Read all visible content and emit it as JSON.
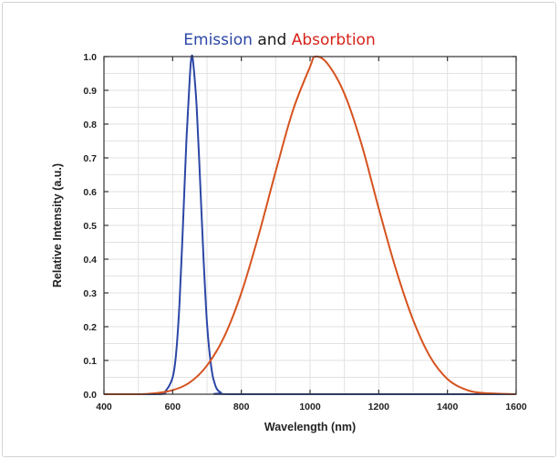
{
  "chart_data": {
    "type": "line",
    "title": {
      "part1": "Emission",
      "joiner": "and",
      "part2": "Absorbtion"
    },
    "xlabel": "Wavelength (nm)",
    "ylabel": "Relative Intensity (a.u.)",
    "xlim": [
      400,
      1600
    ],
    "ylim": [
      0.0,
      1.0
    ],
    "xticks": [
      400,
      600,
      800,
      1000,
      1200,
      1400,
      1600
    ],
    "yticks": [
      0.0,
      0.1,
      0.2,
      0.3,
      0.4,
      0.5,
      0.6,
      0.7,
      0.8,
      0.9,
      1.0
    ],
    "xtick_labels": [
      "400",
      "600",
      "800",
      "1000",
      "1200",
      "1400",
      "1600"
    ],
    "ytick_labels": [
      "0.0",
      "0.1",
      "0.2",
      "0.3",
      "0.4",
      "0.5",
      "0.6",
      "0.7",
      "0.8",
      "0.9",
      "1.0"
    ],
    "grid": true,
    "series": [
      {
        "color": "#2c46a6",
        "x": [
          400,
          560,
          580,
          600,
          610,
          620,
          630,
          640,
          650,
          655,
          660,
          670,
          680,
          690,
          700,
          710,
          720,
          740,
          800,
          1600
        ],
        "y": [
          0.0,
          0.0,
          0.01,
          0.05,
          0.12,
          0.27,
          0.5,
          0.75,
          0.94,
          1.0,
          0.98,
          0.85,
          0.63,
          0.4,
          0.21,
          0.1,
          0.04,
          0.005,
          0.0,
          0.0
        ]
      },
      {
        "color": "#d6531f",
        "x": [
          400,
          500,
          550,
          600,
          650,
          700,
          750,
          800,
          850,
          900,
          950,
          1000,
          1015,
          1050,
          1100,
          1150,
          1200,
          1250,
          1300,
          1350,
          1400,
          1450,
          1500,
          1600
        ],
        "y": [
          0.0,
          0.0,
          0.003,
          0.012,
          0.035,
          0.085,
          0.17,
          0.3,
          0.47,
          0.66,
          0.84,
          0.97,
          1.0,
          0.98,
          0.89,
          0.74,
          0.55,
          0.37,
          0.22,
          0.11,
          0.045,
          0.015,
          0.004,
          0.0
        ]
      }
    ]
  }
}
